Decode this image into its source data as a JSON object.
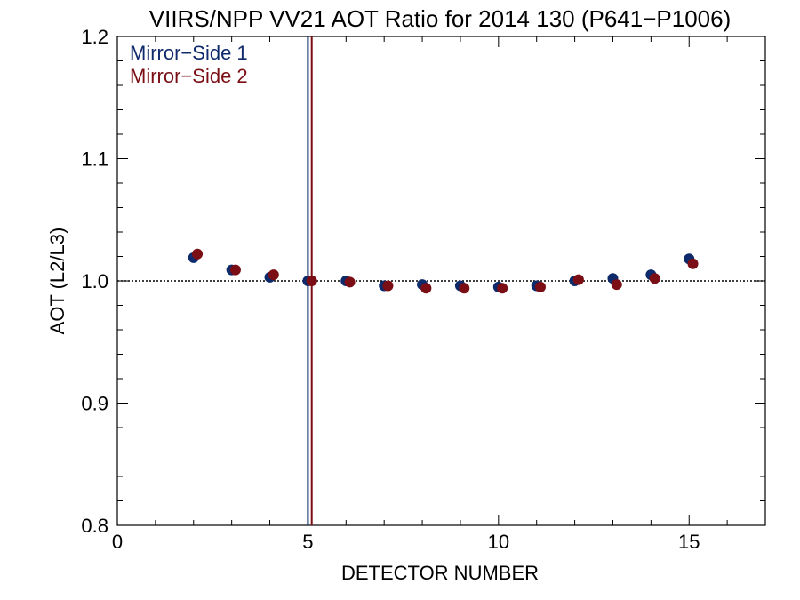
{
  "chart_data": {
    "type": "scatter",
    "title": "VIIRS/NPP VV21 AOT Ratio for 2014 130 (P641−P1006)",
    "xlabel": "DETECTOR NUMBER",
    "ylabel": "AOT (L2/L3)",
    "xlim": [
      0,
      17
    ],
    "ylim": [
      0.8,
      1.2
    ],
    "x_ticks": [
      0,
      5,
      10,
      15
    ],
    "y_ticks": [
      0.8,
      0.9,
      1.0,
      1.1,
      1.2
    ],
    "x_tick_labels": [
      "0",
      "5",
      "10",
      "15"
    ],
    "y_tick_labels": [
      "0.8",
      "0.9",
      "1.0",
      "1.1",
      "1.2"
    ],
    "x_minor_step": 1,
    "y_minor_step": 0.02,
    "reference_line": {
      "y": 1.0,
      "style": "dotted"
    },
    "vertical_lines": [
      {
        "x": 5.0,
        "color": "#0e2a6b"
      },
      {
        "x": 5.1,
        "color": "#7a0e14"
      }
    ],
    "series": [
      {
        "name": "Mirror−Side 1",
        "color": "#0e2a6b",
        "points": [
          [
            2.0,
            1.019
          ],
          [
            3.0,
            1.009
          ],
          [
            4.0,
            1.003
          ],
          [
            5.0,
            1.0
          ],
          [
            6.0,
            1.0
          ],
          [
            7.0,
            0.996
          ],
          [
            8.0,
            0.997
          ],
          [
            9.0,
            0.996
          ],
          [
            10.0,
            0.995
          ],
          [
            11.0,
            0.996
          ],
          [
            12.0,
            1.0
          ],
          [
            13.0,
            1.002
          ],
          [
            14.0,
            1.005
          ],
          [
            15.0,
            1.018
          ]
        ]
      },
      {
        "name": "Mirror−Side 2",
        "color": "#7a0e14",
        "points": [
          [
            2.1,
            1.022
          ],
          [
            3.1,
            1.009
          ],
          [
            4.1,
            1.005
          ],
          [
            5.1,
            1.0
          ],
          [
            6.1,
            0.999
          ],
          [
            7.1,
            0.996
          ],
          [
            8.1,
            0.994
          ],
          [
            9.1,
            0.994
          ],
          [
            10.1,
            0.994
          ],
          [
            11.1,
            0.995
          ],
          [
            12.1,
            1.001
          ],
          [
            13.1,
            0.997
          ],
          [
            14.1,
            1.002
          ],
          [
            15.1,
            1.014
          ]
        ]
      }
    ],
    "legend_position": "top-left",
    "grid": false
  }
}
